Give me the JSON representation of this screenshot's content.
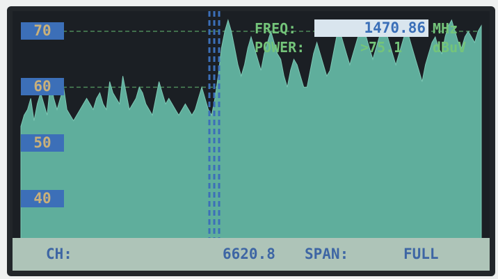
{
  "display": {
    "y_axis_labels": [
      "70",
      "60",
      "50",
      "40"
    ],
    "freq": {
      "label": "FREQ:",
      "value": "1470.86",
      "unit": "MHz"
    },
    "power": {
      "label": "POWER:",
      "value": ">75.1",
      "unit": "dBuV"
    },
    "status": {
      "ch_label": "CH:",
      "ch_value": "6620.8",
      "span_label": "SPAN:",
      "span_value": "FULL"
    }
  },
  "colors": {
    "trace_fill": "#5fae9c",
    "grid": "#4e8a5a",
    "marker": "#3c6fb8",
    "label_bg": "#3c6fb8",
    "label_text": "#c9b07a",
    "readout_text": "#74c47a",
    "status_bg": "#aec4b8",
    "status_text": "#3e66a4"
  },
  "chart_data": {
    "type": "area",
    "ylim": [
      35,
      73
    ],
    "grid": true,
    "y_ticks": [
      70,
      60,
      50,
      40
    ],
    "marker_position": 0.42,
    "values": [
      53,
      55,
      56,
      58,
      54,
      57,
      59,
      57,
      55,
      61,
      58,
      56,
      58,
      60,
      56,
      55,
      54,
      55,
      56,
      57,
      58,
      57,
      56,
      58,
      59,
      57,
      56,
      61,
      59,
      58,
      57,
      62,
      59,
      56,
      57,
      58,
      60,
      59,
      57,
      56,
      55,
      58,
      61,
      59,
      57,
      58,
      57,
      56,
      55,
      56,
      57,
      56,
      55,
      56,
      58,
      60,
      58,
      56,
      55,
      58,
      62,
      67,
      70,
      72,
      70,
      67,
      64,
      62,
      64,
      67,
      69,
      67,
      65,
      63,
      66,
      68,
      70,
      68,
      66,
      65,
      62,
      60,
      63,
      65,
      64,
      62,
      60,
      60,
      63,
      66,
      68,
      66,
      64,
      62,
      63,
      66,
      69,
      70,
      68,
      66,
      64,
      66,
      68,
      70,
      71,
      69,
      67,
      65,
      67,
      69,
      71,
      70,
      68,
      66,
      64,
      66,
      68,
      70,
      69,
      67,
      65,
      63,
      61,
      64,
      66,
      68,
      69,
      67,
      66,
      69,
      71,
      72,
      70,
      68,
      67,
      69,
      70,
      69,
      68,
      70,
      71
    ]
  }
}
